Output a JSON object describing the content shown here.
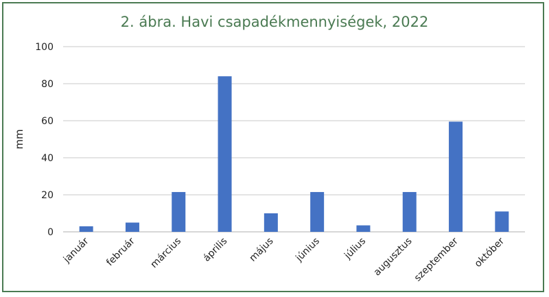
{
  "chart_data": {
    "type": "bar",
    "title": "2. ábra. Havi csapadékmennyiségek, 2022",
    "xlabel": "",
    "ylabel": "mm",
    "ylim": [
      0,
      100
    ],
    "yticks": [
      0,
      20,
      40,
      60,
      80,
      100
    ],
    "grid": true,
    "bar_color": "#4472c4",
    "categories": [
      "január",
      "február",
      "március",
      "április",
      "május",
      "június",
      "július",
      "augusztus",
      "szeptember",
      "október"
    ],
    "values": [
      3,
      5,
      21.5,
      84,
      10,
      21.5,
      3.5,
      21.5,
      59.5,
      11
    ]
  },
  "colors": {
    "frame": "#4a7a52",
    "title": "#4a7a52",
    "grid": "#d4d4d4",
    "axis": "#bfbfbf"
  }
}
